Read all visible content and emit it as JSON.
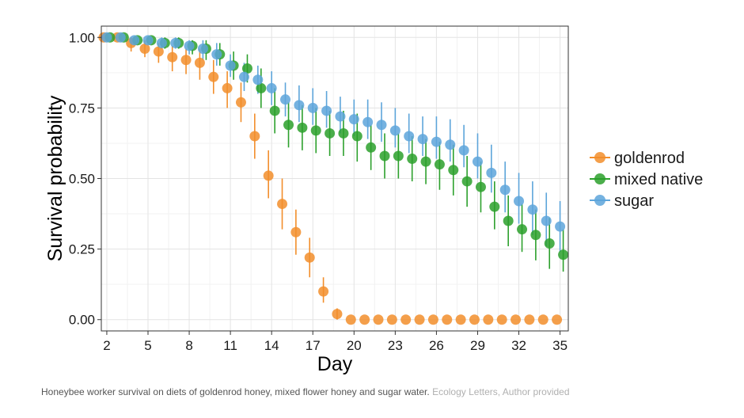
{
  "caption": {
    "text": "Honeybee worker survival on diets of goldenrod honey, mixed flower honey and sugar water.",
    "credit": "Ecology Letters, Author provided"
  },
  "chart_data": {
    "type": "scatter",
    "xlabel": "Day",
    "ylabel": "Survival probability",
    "xlim": [
      1.6,
      35.6
    ],
    "ylim": [
      -0.04,
      1.04
    ],
    "xticks": [
      2,
      5,
      8,
      11,
      14,
      17,
      20,
      23,
      26,
      29,
      32,
      35
    ],
    "yticks": [
      0.0,
      0.25,
      0.5,
      0.75,
      1.0
    ],
    "ytick_labels": [
      "0.00",
      "0.25",
      "0.50",
      "0.75",
      "1.00"
    ],
    "grid": true,
    "legend_position": "right",
    "error_bars": true,
    "series": [
      {
        "name": "goldenrod",
        "color": "#F28E2B",
        "x": [
          2,
          3,
          4,
          5,
          6,
          7,
          8,
          9,
          10,
          11,
          12,
          13,
          14,
          15,
          16,
          17,
          18,
          19,
          20,
          21,
          22,
          23,
          24,
          25,
          26,
          27,
          28,
          29,
          30,
          31,
          32,
          33,
          34,
          35
        ],
        "y": [
          1.0,
          1.0,
          0.98,
          0.96,
          0.95,
          0.93,
          0.92,
          0.91,
          0.86,
          0.82,
          0.77,
          0.65,
          0.51,
          0.41,
          0.31,
          0.22,
          0.1,
          0.02,
          0.0,
          0.0,
          0.0,
          0.0,
          0.0,
          0.0,
          0.0,
          0.0,
          0.0,
          0.0,
          0.0,
          0.0,
          0.0,
          0.0,
          0.0,
          0.0
        ],
        "lower": [
          1.0,
          1.0,
          0.95,
          0.93,
          0.91,
          0.88,
          0.87,
          0.85,
          0.8,
          0.75,
          0.7,
          0.57,
          0.43,
          0.32,
          0.23,
          0.15,
          0.06,
          0.0,
          0.0,
          0.0,
          0.0,
          0.0,
          0.0,
          0.0,
          0.0,
          0.0,
          0.0,
          0.0,
          0.0,
          0.0,
          0.0,
          0.0,
          0.0,
          0.0
        ],
        "upper": [
          1.0,
          1.0,
          1.0,
          0.99,
          0.98,
          0.97,
          0.96,
          0.96,
          0.92,
          0.88,
          0.84,
          0.73,
          0.6,
          0.5,
          0.39,
          0.29,
          0.15,
          0.04,
          0.0,
          0.0,
          0.0,
          0.0,
          0.0,
          0.0,
          0.0,
          0.0,
          0.0,
          0.0,
          0.0,
          0.0,
          0.0,
          0.0,
          0.0,
          0.0
        ]
      },
      {
        "name": "mixed native",
        "color": "#2CA02C",
        "x": [
          2,
          3,
          4,
          5,
          6,
          7,
          8,
          9,
          10,
          11,
          12,
          13,
          14,
          15,
          16,
          17,
          18,
          19,
          20,
          21,
          22,
          23,
          24,
          25,
          26,
          27,
          28,
          29,
          30,
          31,
          32,
          33,
          34,
          35
        ],
        "y": [
          1.0,
          1.0,
          0.99,
          0.99,
          0.98,
          0.98,
          0.97,
          0.96,
          0.94,
          0.9,
          0.89,
          0.82,
          0.74,
          0.69,
          0.68,
          0.67,
          0.66,
          0.66,
          0.65,
          0.61,
          0.58,
          0.58,
          0.57,
          0.56,
          0.55,
          0.53,
          0.49,
          0.47,
          0.4,
          0.35,
          0.32,
          0.3,
          0.27,
          0.23
        ],
        "lower": [
          1.0,
          1.0,
          0.98,
          0.98,
          0.96,
          0.96,
          0.94,
          0.92,
          0.9,
          0.85,
          0.84,
          0.75,
          0.66,
          0.61,
          0.6,
          0.59,
          0.58,
          0.58,
          0.56,
          0.53,
          0.5,
          0.5,
          0.49,
          0.48,
          0.46,
          0.44,
          0.4,
          0.38,
          0.32,
          0.26,
          0.24,
          0.21,
          0.18,
          0.17
        ],
        "upper": [
          1.0,
          1.0,
          1.0,
          1.0,
          1.0,
          1.0,
          0.99,
          0.99,
          0.98,
          0.95,
          0.94,
          0.89,
          0.82,
          0.77,
          0.76,
          0.75,
          0.74,
          0.74,
          0.73,
          0.69,
          0.66,
          0.66,
          0.65,
          0.64,
          0.63,
          0.62,
          0.58,
          0.56,
          0.49,
          0.44,
          0.41,
          0.39,
          0.36,
          0.32
        ]
      },
      {
        "name": "sugar",
        "color": "#5DA5DA",
        "x": [
          2,
          3,
          4,
          5,
          6,
          7,
          8,
          9,
          10,
          11,
          12,
          13,
          14,
          15,
          16,
          17,
          18,
          19,
          20,
          21,
          22,
          23,
          24,
          25,
          26,
          27,
          28,
          29,
          30,
          31,
          32,
          33,
          34,
          35
        ],
        "y": [
          1.0,
          1.0,
          0.99,
          0.99,
          0.98,
          0.98,
          0.97,
          0.96,
          0.94,
          0.9,
          0.86,
          0.85,
          0.82,
          0.78,
          0.76,
          0.75,
          0.74,
          0.72,
          0.71,
          0.7,
          0.69,
          0.67,
          0.65,
          0.64,
          0.63,
          0.62,
          0.6,
          0.56,
          0.52,
          0.46,
          0.42,
          0.39,
          0.35,
          0.33
        ],
        "lower": [
          1.0,
          1.0,
          0.98,
          0.98,
          0.96,
          0.96,
          0.94,
          0.92,
          0.9,
          0.86,
          0.81,
          0.8,
          0.76,
          0.72,
          0.7,
          0.69,
          0.68,
          0.66,
          0.65,
          0.64,
          0.63,
          0.61,
          0.59,
          0.58,
          0.57,
          0.56,
          0.54,
          0.5,
          0.45,
          0.38,
          0.34,
          0.3,
          0.26,
          0.24
        ],
        "upper": [
          1.0,
          1.0,
          1.0,
          1.0,
          1.0,
          1.0,
          0.99,
          0.99,
          0.98,
          0.94,
          0.91,
          0.9,
          0.88,
          0.84,
          0.83,
          0.82,
          0.81,
          0.79,
          0.78,
          0.78,
          0.77,
          0.75,
          0.73,
          0.72,
          0.72,
          0.71,
          0.69,
          0.66,
          0.62,
          0.56,
          0.52,
          0.49,
          0.45,
          0.42
        ]
      }
    ]
  }
}
